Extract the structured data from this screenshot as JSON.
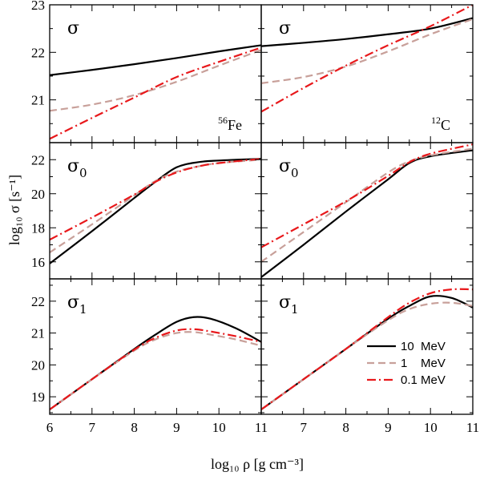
{
  "chart_data": {
    "type": "line",
    "xlabel": "log₁₀ ρ [g cm⁻³]",
    "ylabel": "log₁₀ σ [s⁻¹]",
    "xlim": [
      6,
      11
    ],
    "x_ticks": [
      "6",
      "7",
      "8",
      "9",
      "10",
      "11"
    ],
    "legend": {
      "placement": "bottom-right panel, lower right",
      "entries": [
        {
          "label": "10  MeV",
          "color": "#000000",
          "style": "solid"
        },
        {
          "label": "1    MeV",
          "color": "#c8a09a",
          "style": "dashed"
        },
        {
          "label": "0.1 MeV",
          "color": "#e8181b",
          "style": "dashdot"
        }
      ]
    },
    "panels": [
      {
        "id": "fe-sigma",
        "row": 0,
        "col": 0,
        "label": "σ",
        "element_label": "56Fe",
        "ylim": [
          20.1,
          23
        ],
        "y_ticks": [
          21,
          22,
          23
        ],
        "series": [
          {
            "color": "#000000",
            "style": "solid",
            "x": [
              6,
              7,
              8,
              9,
              10,
              11
            ],
            "values": [
              21.52,
              21.63,
              21.75,
              21.88,
              22.02,
              22.15
            ]
          },
          {
            "color": "#c8a09a",
            "style": "dashed",
            "x": [
              6,
              7,
              8,
              9,
              10,
              11
            ],
            "values": [
              20.77,
              20.9,
              21.1,
              21.38,
              21.72,
              22.05
            ]
          },
          {
            "color": "#e8181b",
            "style": "dashdot",
            "x": [
              6,
              7,
              8,
              9,
              10,
              11
            ],
            "values": [
              20.18,
              20.62,
              21.05,
              21.48,
              21.8,
              22.1
            ]
          }
        ]
      },
      {
        "id": "c-sigma",
        "row": 0,
        "col": 1,
        "label": "σ",
        "element_label": "12C",
        "ylim": [
          20.1,
          23
        ],
        "y_ticks": [
          21,
          22,
          23
        ],
        "series": [
          {
            "color": "#000000",
            "style": "solid",
            "x": [
              6,
              7,
              8,
              9,
              10,
              11
            ],
            "values": [
              22.13,
              22.2,
              22.28,
              22.38,
              22.5,
              22.72
            ]
          },
          {
            "color": "#c8a09a",
            "style": "dashed",
            "x": [
              6,
              7,
              8,
              9,
              10,
              11
            ],
            "values": [
              21.35,
              21.48,
              21.7,
              22.02,
              22.38,
              22.7
            ]
          },
          {
            "color": "#e8181b",
            "style": "dashdot",
            "x": [
              6,
              7,
              8,
              9,
              10,
              11
            ],
            "values": [
              20.75,
              21.25,
              21.72,
              22.15,
              22.55,
              23.0
            ]
          }
        ]
      },
      {
        "id": "fe-sigma0",
        "row": 1,
        "col": 0,
        "label": "σ₀",
        "ylim": [
          15.0,
          23.0
        ],
        "y_ticks": [
          16,
          18,
          20,
          22
        ],
        "series": [
          {
            "color": "#000000",
            "style": "solid",
            "x": [
              6,
              7,
              8,
              8.5,
              9,
              9.5,
              10,
              11
            ],
            "values": [
              15.9,
              17.8,
              19.75,
              20.7,
              21.55,
              21.85,
              21.95,
              22.05
            ]
          },
          {
            "color": "#c8a09a",
            "style": "dashed",
            "x": [
              6,
              7,
              8,
              8.5,
              9,
              9.5,
              10,
              11
            ],
            "values": [
              16.55,
              18.2,
              19.9,
              20.75,
              21.3,
              21.6,
              21.8,
              22.0
            ]
          },
          {
            "color": "#e8181b",
            "style": "dashdot",
            "x": [
              6,
              7,
              8,
              8.5,
              9,
              9.5,
              10,
              11
            ],
            "values": [
              17.3,
              18.6,
              19.95,
              20.7,
              21.25,
              21.6,
              21.8,
              22.05
            ]
          }
        ]
      },
      {
        "id": "c-sigma0",
        "row": 1,
        "col": 1,
        "label": "σ₀",
        "ylim": [
          15.0,
          23.0
        ],
        "y_ticks": [
          16,
          18,
          20,
          22
        ],
        "series": [
          {
            "color": "#000000",
            "style": "solid",
            "x": [
              6,
              7,
              8,
              9,
              9.5,
              10,
              11
            ],
            "values": [
              15.1,
              17.0,
              18.95,
              20.85,
              21.8,
              22.2,
              22.55
            ]
          },
          {
            "color": "#c8a09a",
            "style": "dashed",
            "x": [
              6,
              7,
              8,
              9,
              9.5,
              10,
              11
            ],
            "values": [
              16.0,
              17.75,
              19.5,
              21.25,
              21.9,
              22.25,
              22.65
            ]
          },
          {
            "color": "#e8181b",
            "style": "dashdot",
            "x": [
              6,
              7,
              8,
              9,
              9.5,
              10,
              11
            ],
            "values": [
              16.85,
              18.2,
              19.55,
              21.05,
              21.85,
              22.35,
              22.9
            ]
          }
        ]
      },
      {
        "id": "fe-sigma1",
        "row": 2,
        "col": 0,
        "label": "σ₁",
        "ylim": [
          18.45,
          22.7
        ],
        "y_ticks": [
          19,
          20,
          21,
          22
        ],
        "series": [
          {
            "color": "#000000",
            "style": "solid",
            "x": [
              6,
              7,
              8,
              8.5,
              9,
              9.4,
              9.8,
              10.4,
              11
            ],
            "values": [
              18.6,
              19.55,
              20.5,
              20.95,
              21.35,
              21.5,
              21.45,
              21.15,
              20.72
            ]
          },
          {
            "color": "#c8a09a",
            "style": "dashed",
            "x": [
              6,
              7,
              8,
              8.5,
              9,
              9.4,
              9.8,
              10.4,
              11
            ],
            "values": [
              18.6,
              19.55,
              20.45,
              20.8,
              21.0,
              21.03,
              20.95,
              20.8,
              20.6
            ]
          },
          {
            "color": "#e8181b",
            "style": "dashdot",
            "x": [
              6,
              7,
              8,
              8.5,
              9,
              9.4,
              9.8,
              10.4,
              11
            ],
            "values": [
              18.6,
              19.55,
              20.48,
              20.85,
              21.08,
              21.12,
              21.05,
              20.9,
              20.72
            ]
          }
        ]
      },
      {
        "id": "c-sigma1",
        "row": 2,
        "col": 1,
        "label": "σ₁",
        "ylim": [
          18.45,
          22.7
        ],
        "y_ticks": [
          19,
          20,
          21,
          22
        ],
        "series": [
          {
            "color": "#000000",
            "style": "solid",
            "x": [
              6,
              7,
              8,
              9,
              9.5,
              10,
              10.5,
              11
            ],
            "values": [
              18.6,
              19.55,
              20.5,
              21.45,
              21.85,
              22.15,
              22.1,
              21.8
            ]
          },
          {
            "color": "#c8a09a",
            "style": "dashed",
            "x": [
              6,
              7,
              8,
              9,
              9.5,
              10,
              10.5,
              11
            ],
            "values": [
              18.6,
              19.55,
              20.5,
              21.4,
              21.75,
              21.92,
              21.95,
              21.85
            ]
          },
          {
            "color": "#e8181b",
            "style": "dashdot",
            "x": [
              6,
              7,
              8,
              9,
              9.5,
              10,
              10.5,
              11
            ],
            "values": [
              18.6,
              19.55,
              20.5,
              21.5,
              21.95,
              22.25,
              22.37,
              22.37
            ]
          }
        ]
      }
    ]
  }
}
